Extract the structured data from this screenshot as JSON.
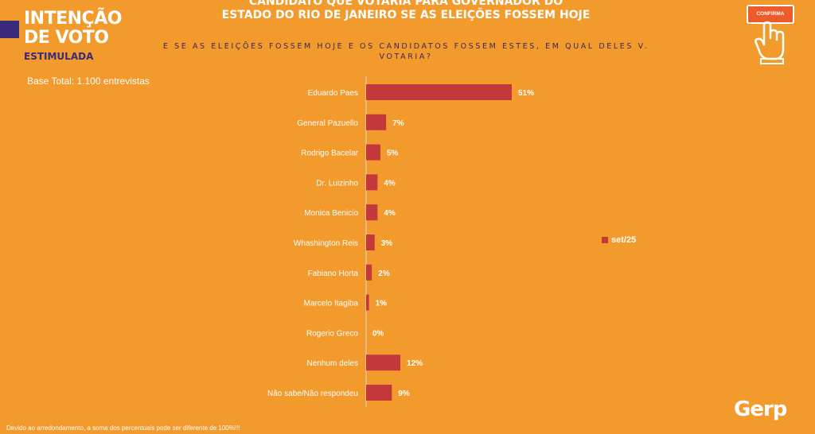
{
  "badge": {
    "line1": "INTENÇÃO",
    "line2": "DE VOTO",
    "line3": "ESTIMULADA"
  },
  "header": {
    "title_line1": "CANDIDATO QUE VOTARIA PARA GOVERNADOR DO",
    "title_line2": "ESTADO DO RIO DE JANEIRO SE AS ELEIÇÕES FOSSEM HOJE",
    "subtitle": "E SE AS ELEIÇÕES FOSSEM HOJE E OS CANDIDATOS FOSSEM ESTES, EM QUAL DELES V. VOTARIA?"
  },
  "base_total": "Base Total: 1.100 entrevistas",
  "footnote": "Devido ao arredondamento, a soma dos percentuais pode ser diferente de 100%!!!",
  "confirma_label": "CONFIRMA",
  "logo": "Gerp",
  "legend_label": "set/25",
  "colors": {
    "background": "#f39a2c",
    "bar": "#c3393b",
    "axis": "#d9d9d9"
  },
  "chart_data": {
    "type": "bar",
    "orientation": "horizontal",
    "categories": [
      "Eduardo Paes",
      "General Pazuello",
      "Rodrigo Bacelar",
      "Dr. Luizinho",
      "Monica Benicio",
      "Whashington Reis",
      "Fabiano Horta",
      "Marcelo Itagiba",
      "Rogerio Greco",
      "Nenhum deles",
      "Não sabe/Não respondeu"
    ],
    "series": [
      {
        "name": "set/25",
        "values": [
          51,
          7,
          5,
          4,
          4,
          3,
          2,
          1,
          0,
          12,
          9
        ]
      }
    ],
    "value_labels": [
      "51%",
      "7%",
      "5%",
      "4%",
      "4%",
      "3%",
      "2%",
      "1%",
      "0%",
      "12%",
      "9%"
    ],
    "xlim": [
      0,
      51
    ],
    "grid": false,
    "legend_position": "right"
  }
}
